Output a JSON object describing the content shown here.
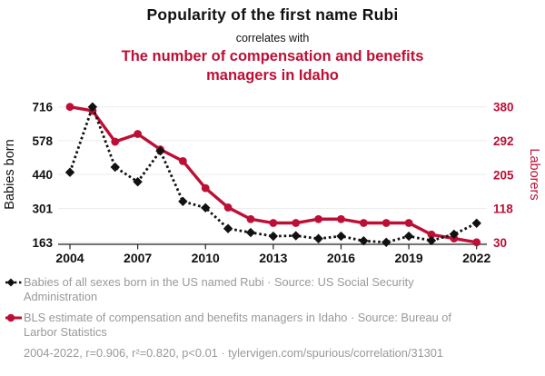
{
  "header": {
    "title": "Popularity of the first name Rubi",
    "subtitle": "correlates with",
    "counterpart": "The number of compensation and benefits managers in Idaho"
  },
  "chart_data": {
    "type": "line",
    "x": [
      2004,
      2005,
      2006,
      2007,
      2008,
      2009,
      2010,
      2011,
      2012,
      2013,
      2014,
      2015,
      2016,
      2017,
      2018,
      2019,
      2020,
      2021,
      2022
    ],
    "x_tick_labels": [
      "2004",
      "2007",
      "2010",
      "2013",
      "2016",
      "2019",
      "2022"
    ],
    "left_axis": {
      "label": "Babies born",
      "ticks": [
        716,
        578,
        440,
        301,
        163
      ],
      "range": [
        163,
        716
      ]
    },
    "right_axis": {
      "label": "Laborers",
      "ticks": [
        380,
        292,
        205,
        118,
        30
      ],
      "range": [
        30,
        380
      ]
    },
    "grid": "horizontal",
    "legend_position": "bottom",
    "series": [
      {
        "name": "Babies of all sexes born in the US named Rubi",
        "axis": "left",
        "style": "dotted-diamond",
        "color": "#111111",
        "values": [
          449,
          716,
          470,
          410,
          536,
          330,
          304,
          219,
          203,
          188,
          190,
          178,
          188,
          169,
          163,
          188,
          170,
          196,
          241
        ]
      },
      {
        "name": "BLS estimate of compensation and benefits managers in Idaho",
        "axis": "right",
        "style": "solid-circle",
        "color": "#bd0f35",
        "values": [
          380,
          370,
          290,
          310,
          270,
          240,
          170,
          120,
          90,
          80,
          80,
          90,
          90,
          80,
          80,
          80,
          50,
          40,
          30
        ]
      }
    ]
  },
  "legend": {
    "items": [
      {
        "marker": "black-diamond-dotted",
        "label": "Babies of all sexes born in the US named Rubi · Source: US Social Security Administration"
      },
      {
        "marker": "red-circle-solid",
        "label": "BLS estimate of compensation and benefits managers in Idaho · Source: Bureau of Larbor Statistics"
      }
    ],
    "footnote": "2004-2022, r=0.906, r²=0.820, p<0.01 · tylervigen.com/spurious/correlation/31301"
  },
  "colors": {
    "accent_red": "#bd0f35",
    "series_black": "#111111",
    "grid": "#ececec",
    "axis": "#222222",
    "legend_text": "#999999",
    "text": "#111111",
    "background": "#ffffff"
  }
}
